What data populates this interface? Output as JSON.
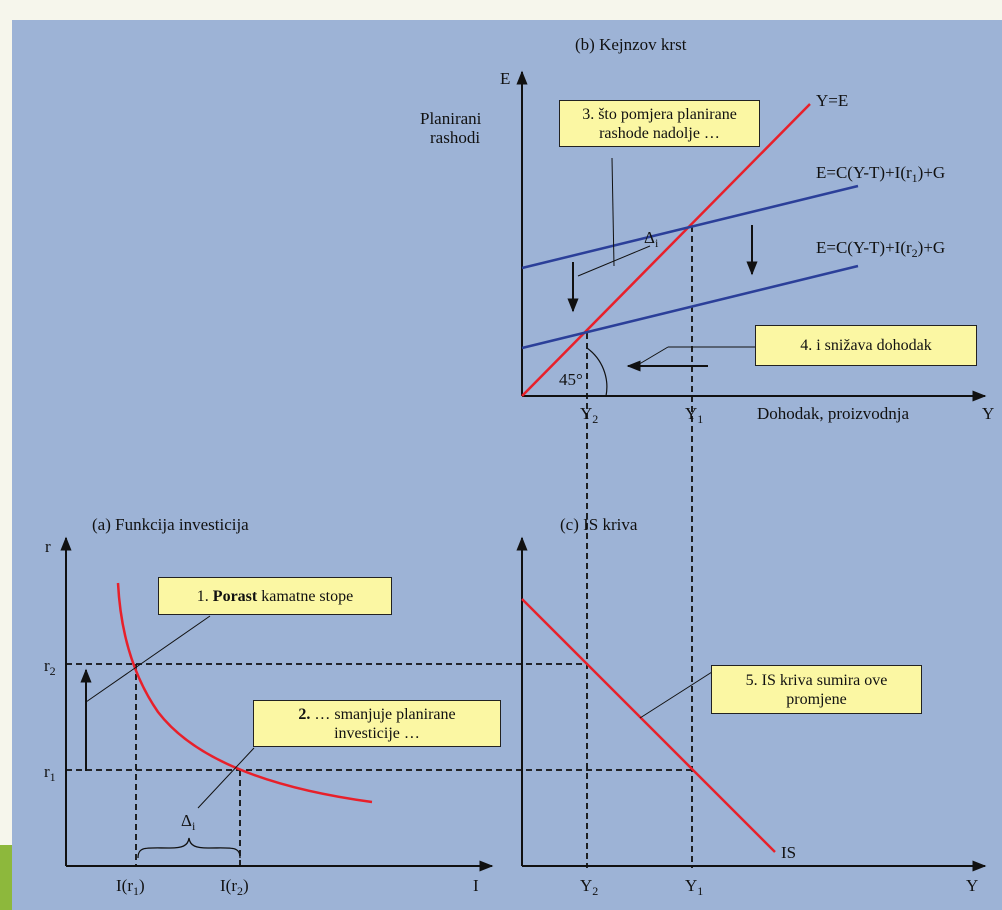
{
  "panel_b": {
    "title": "(b) Kejnzov krst",
    "y_axis_symbol": "E",
    "y_axis_label_line1": "Planirani",
    "y_axis_label_line2": "rashodi",
    "x_axis_label": "Dohodak, proizvodnja",
    "x_axis_symbol": "Y",
    "line_45": "Y=E",
    "line_e1": "E=C(Y-T)+I(r",
    "line_e1_sub": "1",
    "line_e1_tail": ")+G",
    "line_e2": "E=C(Y-T)+I(r",
    "line_e2_sub": "2",
    "line_e2_tail": ")+G",
    "angle_label": "45°",
    "delta_label": "Δ",
    "delta_sub": "i",
    "tick_y2": "Y",
    "tick_y2_sub": "2",
    "tick_y1": "Y",
    "tick_y1_sub": "1"
  },
  "panel_a": {
    "title": "(a) Funkcija investicija",
    "y_axis_symbol": "r",
    "x_axis_symbol": "I",
    "tick_r2": "r",
    "tick_r2_sub": "2",
    "tick_r1": "r",
    "tick_r1_sub": "1",
    "tick_i_r1": "I(r",
    "tick_i_r1_sub": "1",
    "tick_i_r1_tail": ")",
    "tick_i_r2": "I(r",
    "tick_i_r2_sub": "2",
    "tick_i_r2_tail": ")",
    "delta_label": "Δ",
    "delta_sub": "i"
  },
  "panel_c": {
    "title": "(c) IS kriva",
    "x_axis_symbol": "Y",
    "curve_label": "IS",
    "tick_y2": "Y",
    "tick_y2_sub": "2",
    "tick_y1": "Y",
    "tick_y1_sub": "1"
  },
  "callouts": {
    "c1_num": "1. ",
    "c1_bold": "Porast",
    "c1_rest": " kamatne stope",
    "c2_num": "2.",
    "c2_line1": " … smanjuje planirane",
    "c2_line2": "investicije …",
    "c3_line1": "3. što pomjera planirane",
    "c3_line2": "rashode nadolje …",
    "c4": "4. i snižava dohodak",
    "c5_line1": "5. IS kriva sumira ove",
    "c5_line2": "promjene"
  },
  "colors": {
    "background": "#9db3d6",
    "curve_red": "#e8202a",
    "line_blue": "#2b3f99",
    "callout_fill": "#fbf7a3",
    "accent_green": "#8db83c"
  }
}
